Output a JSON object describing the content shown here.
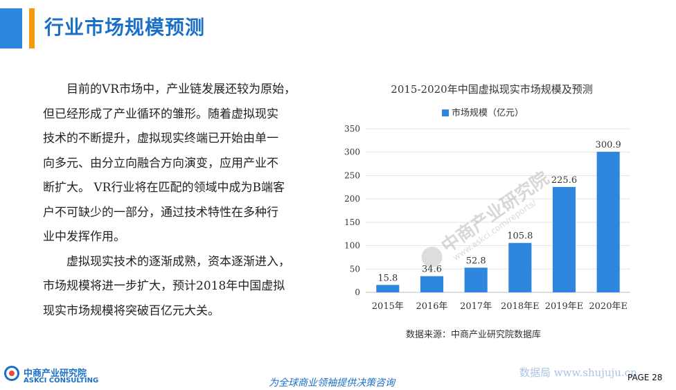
{
  "header": {
    "title": "行业市场规模预测"
  },
  "body": {
    "paragraph1": [
      "目前的VR市场中，产业链发展还较为原始，",
      "但已经形成了产业循环的雏形。随着虚拟现实",
      "技术的不断提升，虚拟现实终端已开始由单一",
      "向多元、由分立向融合方向演变，应用产业不",
      "断扩大。 VR行业将在匹配的领域中成为B端客",
      "户不可缺少的一部分，通过技术特性在多种行",
      "业中发挥作用。"
    ],
    "paragraph2": [
      "虚拟现实技术的逐渐成熟，资本逐渐进入，",
      "市场规模将进一步扩大，预计2018年中国虚拟",
      "现实市场规模将突破百亿元大关。"
    ]
  },
  "chart_data": {
    "type": "bar",
    "title": "2015-2020年中国虚拟现实市场规模及预测",
    "categories": [
      "2015年",
      "2016年",
      "2017年",
      "2018年E",
      "2019年E",
      "2020年E"
    ],
    "series": [
      {
        "name": "市场规模（亿元）",
        "values": [
          15.8,
          34.6,
          52.8,
          105.8,
          225.6,
          300.9
        ]
      }
    ],
    "data_labels": [
      "15.8",
      "34.6",
      "52.8",
      "105.8",
      "225.6",
      "300.9"
    ],
    "ylim": [
      0,
      350
    ],
    "yticks": [
      0,
      50,
      100,
      150,
      200,
      250,
      300,
      350
    ],
    "grid": true,
    "legend_position": "top",
    "bar_color": "#2E86DE",
    "source": "数据来源：中商产业研究院数据库"
  },
  "watermark": {
    "cn": "中商产业研究院",
    "url": "www.askci.com/reports/"
  },
  "footer": {
    "logo_cn": "中商产业研究院",
    "logo_en": "ASKCI CONSULTING",
    "slogan": "为全球商业领袖提供决策咨询",
    "site": "数据局 www.shujuju.cn",
    "page": "PAGE 28"
  },
  "colors": {
    "accent_blue": "#1B6FC8",
    "accent_orange": "#F39C12",
    "bar": "#2E86DE"
  }
}
